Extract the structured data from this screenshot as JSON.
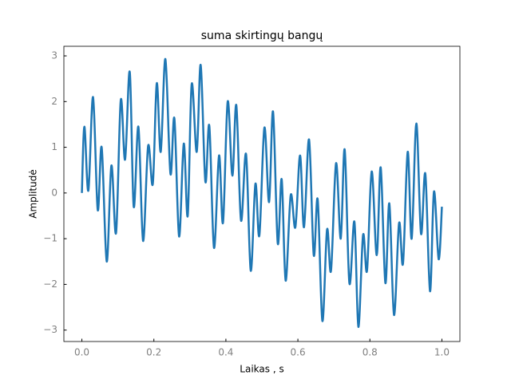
{
  "chart_data": {
    "type": "line",
    "title": "suma skirtingų bangų",
    "xlabel": "Laikas , s",
    "ylabel": "Amplitudė",
    "x": [
      0,
      0.007,
      0.018,
      0.031,
      0.044,
      0.055,
      0.069,
      0.082,
      0.095,
      0.108,
      0.12,
      0.133,
      0.144,
      0.157,
      0.17,
      0.184,
      0.197,
      0.208,
      0.219,
      0.232,
      0.246,
      0.257,
      0.27,
      0.283,
      0.294,
      0.305,
      0.319,
      0.33,
      0.343,
      0.354,
      0.367,
      0.381,
      0.392,
      0.405,
      0.418,
      0.429,
      0.442,
      0.456,
      0.469,
      0.482,
      0.493,
      0.507,
      0.52,
      0.531,
      0.544,
      0.555,
      0.566,
      0.58,
      0.593,
      0.606,
      0.617,
      0.631,
      0.644,
      0.655,
      0.668,
      0.681,
      0.692,
      0.706,
      0.719,
      0.73,
      0.743,
      0.757,
      0.768,
      0.781,
      0.792,
      0.805,
      0.819,
      0.83,
      0.843,
      0.854,
      0.867,
      0.881,
      0.892,
      0.905,
      0.916,
      0.929,
      0.942,
      0.954,
      0.967,
      0.978,
      0.991,
      1.0
    ],
    "series": [
      {
        "name": "suma",
        "color": "#1f77b4",
        "values": [
          0,
          1.45,
          0.05,
          2.1,
          -0.37,
          1.0,
          -1.5,
          0.6,
          -0.87,
          2.03,
          0.73,
          2.65,
          -0.3,
          1.45,
          -1.05,
          1.03,
          0.2,
          2.4,
          0.9,
          2.93,
          0.42,
          1.63,
          -0.95,
          1.08,
          -0.5,
          2.38,
          0.9,
          2.8,
          0.25,
          1.47,
          -1.2,
          0.82,
          -0.65,
          2.0,
          0.38,
          1.92,
          -0.6,
          0.85,
          -1.7,
          0.2,
          -0.93,
          1.43,
          -0.2,
          1.78,
          -1.1,
          0.3,
          -1.92,
          -0.05,
          -0.75,
          0.82,
          -0.75,
          1.17,
          -1.36,
          -0.14,
          -2.8,
          -0.8,
          -1.7,
          0.65,
          -1.0,
          0.95,
          -1.97,
          -0.63,
          -2.93,
          -0.92,
          -1.7,
          0.47,
          -1.36,
          0.56,
          -1.97,
          -0.23,
          -2.67,
          -0.66,
          -1.54,
          0.9,
          -1.0,
          1.52,
          -0.89,
          0.42,
          -2.15,
          0.03,
          -1.45,
          -0.3
        ]
      }
    ],
    "xlim": [
      -0.05,
      1.05
    ],
    "ylim": [
      -3.25,
      3.21
    ],
    "xticks": [
      {
        "value": 0,
        "label": "0.0"
      },
      {
        "value": 0.2,
        "label": "0.2"
      },
      {
        "value": 0.4,
        "label": "0.4"
      },
      {
        "value": 0.6,
        "label": "0.6"
      },
      {
        "value": 0.8,
        "label": "0.8"
      },
      {
        "value": 1,
        "label": "1.0"
      }
    ],
    "yticks": [
      {
        "value": -3,
        "label": "−3"
      },
      {
        "value": -2,
        "label": "−2"
      },
      {
        "value": -1,
        "label": "−1"
      },
      0,
      1,
      2,
      3
    ],
    "grid": false
  }
}
